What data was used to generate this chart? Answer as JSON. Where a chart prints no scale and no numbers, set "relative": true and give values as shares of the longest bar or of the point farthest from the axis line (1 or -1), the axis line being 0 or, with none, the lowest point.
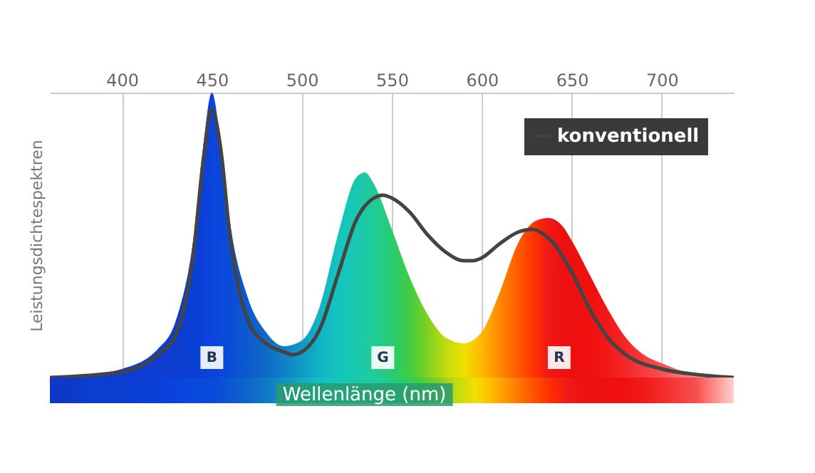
{
  "chart_data": {
    "type": "area",
    "relative": true,
    "xlabel": "Wellenlänge (nm)",
    "ylabel": "Leistungsdichtespektren",
    "xlim": [
      360,
      740
    ],
    "xticks": [
      400,
      450,
      500,
      550,
      600,
      650,
      700
    ],
    "grid": "x",
    "legend": "top right",
    "series": [
      {
        "x": [
          360,
          380,
          400,
          420,
          430,
          440,
          445,
          450,
          455,
          460,
          470,
          480,
          490,
          500,
          510,
          520,
          530,
          535,
          540,
          550,
          560,
          570,
          580,
          590,
          600,
          610,
          620,
          630,
          637,
          645,
          650,
          660,
          670,
          680,
          690,
          700,
          720,
          740
        ],
        "values": [
          0,
          0.01,
          0.03,
          0.1,
          0.2,
          0.5,
          0.8,
          1.0,
          0.82,
          0.55,
          0.28,
          0.16,
          0.11,
          0.13,
          0.25,
          0.5,
          0.7,
          0.72,
          0.68,
          0.52,
          0.35,
          0.22,
          0.14,
          0.12,
          0.16,
          0.3,
          0.47,
          0.55,
          0.56,
          0.53,
          0.48,
          0.36,
          0.24,
          0.14,
          0.08,
          0.05,
          0.01,
          0
        ],
        "colors": [
          "#1038c8",
          "#1038c8",
          "#0c3cd0",
          "#0c3cd0",
          "#0c3cd0",
          "#0a3fd4",
          "#0a40d8",
          "#0a44dc",
          "#0a48dc",
          "#0a4cd8",
          "#0c5ad0",
          "#0e6ac8",
          "#1080c4",
          "#109ac4",
          "#10b4c4",
          "#14c4c0",
          "#18c8b0",
          "#1ccaa4",
          "#20cc98",
          "#28cc70",
          "#40cc40",
          "#80d020",
          "#c0dc10",
          "#f0e000",
          "#ffb800",
          "#ff8800",
          "#ff5a00",
          "#ff3000",
          "#f01818",
          "#ee1010",
          "#ee1010",
          "#f01010",
          "#f21818",
          "#f42828",
          "#f63c3c",
          "#f85050",
          "#fc9090",
          "#ffd0d0"
        ]
      },
      {
        "type": "line",
        "name": "konventionell",
        "color": "#444444",
        "x": [
          360,
          400,
          420,
          430,
          440,
          445,
          450,
          455,
          460,
          470,
          480,
          490,
          495,
          500,
          510,
          520,
          530,
          540,
          545,
          550,
          560,
          570,
          580,
          590,
          595,
          600,
          610,
          620,
          628,
          635,
          640,
          650,
          660,
          670,
          680,
          700,
          720,
          740
        ],
        "values": [
          0,
          0.02,
          0.08,
          0.15,
          0.45,
          0.75,
          0.94,
          0.8,
          0.5,
          0.2,
          0.12,
          0.09,
          0.08,
          0.09,
          0.17,
          0.36,
          0.55,
          0.63,
          0.64,
          0.63,
          0.58,
          0.5,
          0.44,
          0.41,
          0.41,
          0.42,
          0.47,
          0.51,
          0.52,
          0.5,
          0.47,
          0.37,
          0.24,
          0.14,
          0.08,
          0.03,
          0.01,
          0
        ]
      }
    ],
    "annotations": [
      {
        "text": "B",
        "x": 450,
        "y": 0.07
      },
      {
        "text": "G",
        "x": 545,
        "y": 0.07
      },
      {
        "text": "R",
        "x": 643,
        "y": 0.07
      }
    ]
  }
}
